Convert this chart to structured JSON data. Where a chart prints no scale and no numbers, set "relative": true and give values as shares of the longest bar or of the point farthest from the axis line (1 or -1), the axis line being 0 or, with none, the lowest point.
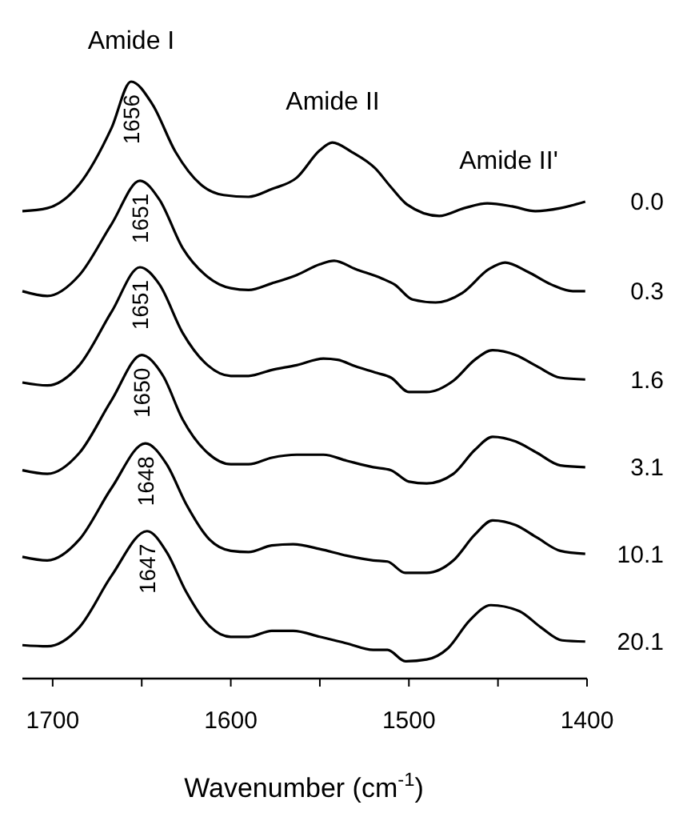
{
  "chart_data": {
    "type": "line",
    "relative": true,
    "xlabel": "Wavenumber (cm$^{-1}$)",
    "xlim": [
      1717,
      1400
    ],
    "xticks": [
      1700,
      {
        "value": 1650,
        "label": null
      },
      1600,
      {
        "value": 1550,
        "label": null
      },
      1500,
      {
        "value": 1450,
        "label": null
      },
      1400
    ],
    "grid": false,
    "legend": false,
    "marker": "none",
    "line_style": "solid",
    "x": [
      1717,
      1703,
      1685,
      1667,
      1656,
      1644,
      1631,
      1617,
      1604,
      1590,
      1577,
      1563,
      1550,
      1543,
      1532,
      1519,
      1510,
      1501,
      1483,
      1469,
      1456,
      1442,
      1429,
      1415,
      1401
    ],
    "series": [
      {
        "name": "0.0",
        "color": "#000000",
        "values": [
          0.783,
          0.788,
          0.828,
          0.922,
          1.0,
          0.962,
          0.882,
          0.828,
          0.81,
          0.807,
          0.82,
          0.839,
          0.885,
          0.898,
          0.882,
          0.855,
          0.823,
          0.794,
          0.775,
          0.788,
          0.796,
          0.791,
          0.783,
          0.788,
          0.799
        ]
      },
      {
        "name": "0.3",
        "color": "#000000",
        "x": [
          1717,
          1703,
          1685,
          1667,
          1651,
          1640,
          1627,
          1613,
          1600,
          1590,
          1577,
          1563,
          1550,
          1542,
          1530,
          1515,
          1508,
          1498,
          1485,
          1470,
          1455,
          1446,
          1433,
          1420,
          1408,
          1401
        ],
        "values": [
          0.649,
          0.641,
          0.676,
          0.761,
          0.834,
          0.802,
          0.721,
          0.673,
          0.654,
          0.651,
          0.662,
          0.676,
          0.694,
          0.7,
          0.686,
          0.67,
          0.66,
          0.635,
          0.63,
          0.646,
          0.686,
          0.697,
          0.681,
          0.66,
          0.649,
          0.649
        ]
      },
      {
        "name": "1.6",
        "color": "#000000",
        "x": [
          1717,
          1703,
          1685,
          1667,
          1651,
          1640,
          1627,
          1613,
          1600,
          1590,
          1577,
          1563,
          1548,
          1540,
          1530,
          1518,
          1510,
          1500,
          1490,
          1475,
          1463,
          1453,
          1440,
          1428,
          1415,
          1401
        ],
        "values": [
          0.496,
          0.491,
          0.525,
          0.614,
          0.689,
          0.66,
          0.579,
          0.525,
          0.507,
          0.507,
          0.517,
          0.525,
          0.536,
          0.534,
          0.523,
          0.512,
          0.504,
          0.48,
          0.48,
          0.499,
          0.534,
          0.55,
          0.542,
          0.523,
          0.504,
          0.501
        ]
      },
      {
        "name": "3.1",
        "color": "#000000",
        "x": [
          1717,
          1703,
          1685,
          1667,
          1650,
          1638,
          1627,
          1613,
          1600,
          1590,
          1577,
          1563,
          1548,
          1535,
          1520,
          1510,
          1500,
          1490,
          1475,
          1463,
          1453,
          1440,
          1428,
          1415,
          1401
        ],
        "values": [
          0.349,
          0.343,
          0.378,
          0.466,
          0.542,
          0.507,
          0.434,
          0.378,
          0.359,
          0.359,
          0.37,
          0.375,
          0.375,
          0.365,
          0.354,
          0.349,
          0.33,
          0.327,
          0.343,
          0.383,
          0.405,
          0.397,
          0.378,
          0.357,
          0.354
        ]
      },
      {
        "name": "10.1",
        "color": "#000000",
        "x": [
          1717,
          1703,
          1685,
          1667,
          1648,
          1636,
          1625,
          1612,
          1600,
          1590,
          1577,
          1565,
          1550,
          1535,
          1520,
          1512,
          1502,
          1490,
          1475,
          1463,
          1453,
          1440,
          1428,
          1415,
          1401
        ],
        "values": [
          0.204,
          0.198,
          0.233,
          0.319,
          0.394,
          0.359,
          0.292,
          0.233,
          0.214,
          0.212,
          0.223,
          0.225,
          0.217,
          0.206,
          0.198,
          0.196,
          0.177,
          0.177,
          0.198,
          0.241,
          0.265,
          0.257,
          0.236,
          0.214,
          0.209
        ]
      },
      {
        "name": "20.1",
        "color": "#000000",
        "x": [
          1717,
          1703,
          1685,
          1667,
          1647,
          1636,
          1625,
          1612,
          1600,
          1590,
          1577,
          1565,
          1550,
          1535,
          1520,
          1512,
          1502,
          1490,
          1478,
          1466,
          1454,
          1438,
          1426,
          1414,
          1401
        ],
        "values": [
          0.056,
          0.054,
          0.086,
          0.172,
          0.247,
          0.212,
          0.145,
          0.088,
          0.07,
          0.07,
          0.08,
          0.08,
          0.07,
          0.059,
          0.048,
          0.048,
          0.029,
          0.032,
          0.051,
          0.097,
          0.123,
          0.113,
          0.086,
          0.064,
          0.062
        ]
      }
    ],
    "annotations": [
      "Amide I",
      "Amide II",
      "Amide II'",
      {
        "text": "1656",
        "x": 1656,
        "y": 1.0
      },
      {
        "text": "1651",
        "x": 1651,
        "y": 0.834
      },
      {
        "text": "1651",
        "x": 1651,
        "y": 0.689
      },
      {
        "text": "1650",
        "x": 1650,
        "y": 0.542
      },
      {
        "text": "1648",
        "x": 1648,
        "y": 0.394
      },
      {
        "text": "1647",
        "x": 1647,
        "y": 0.247
      }
    ]
  }
}
